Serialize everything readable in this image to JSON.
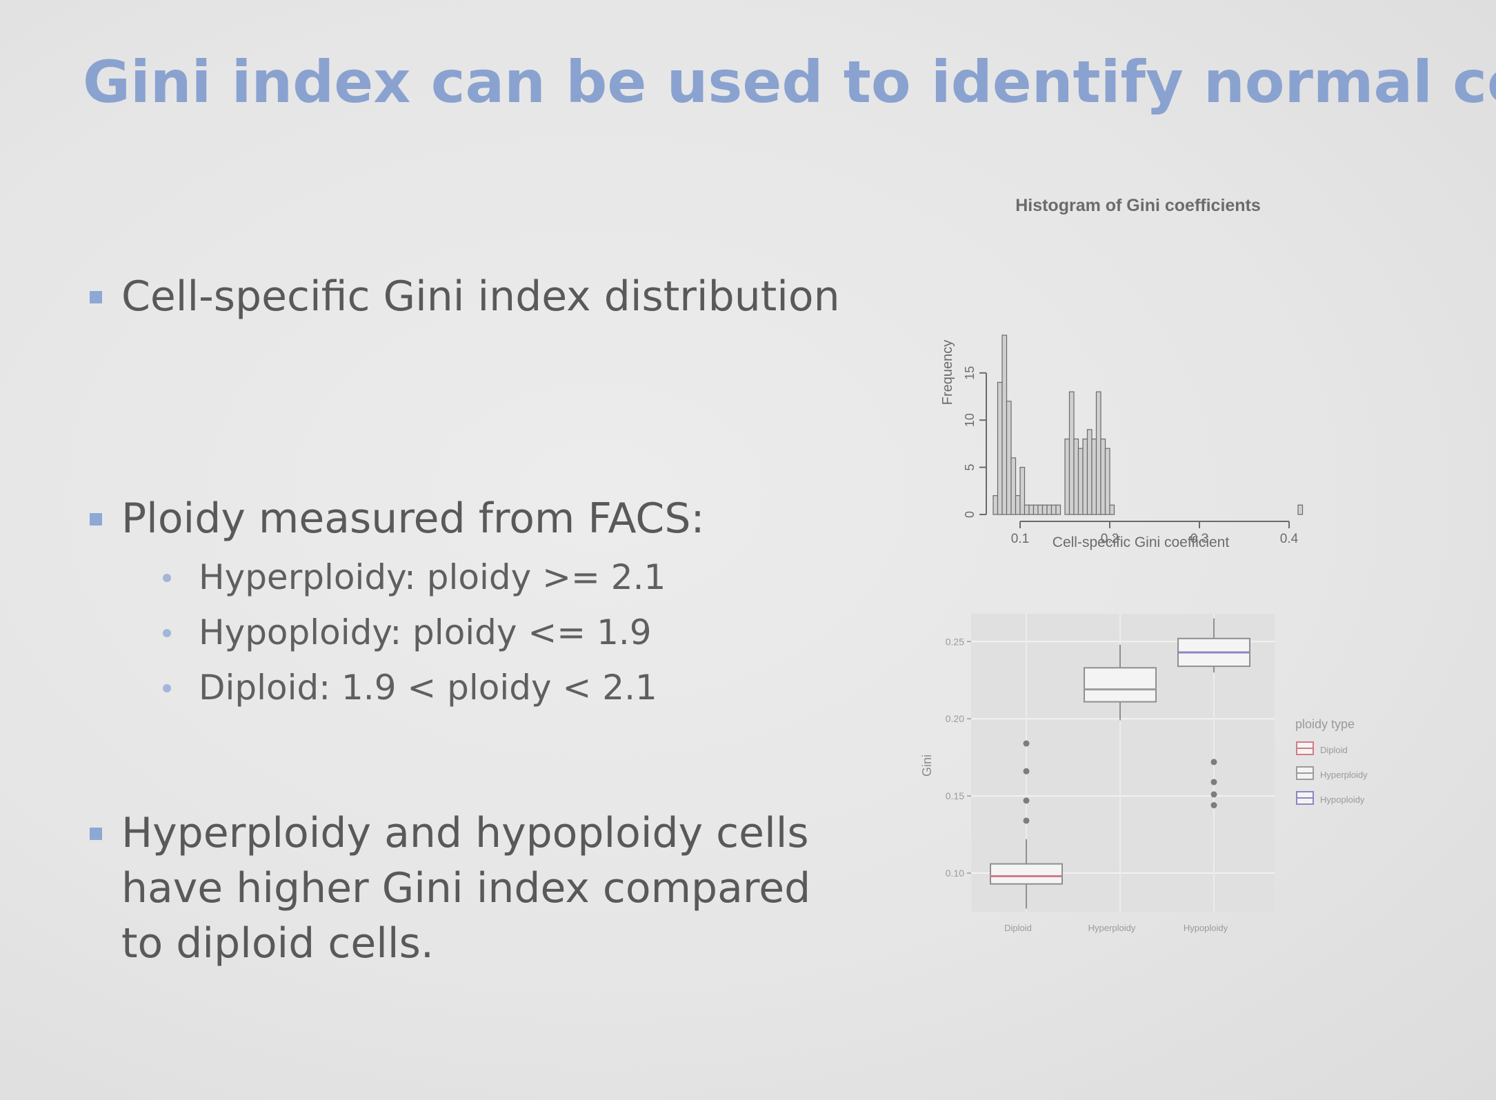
{
  "slide": {
    "title": "Gini index can be used to identify normal cells",
    "bullets": [
      "Cell-specific Gini index distribution",
      "Ploidy measured from FACS:",
      "Hyperploidy and hypoploidy cells have higher Gini index compared to diploid cells."
    ],
    "sub_bullets": [
      "Hyperploidy: ploidy >= 2.1",
      "Hypoploidy: ploidy <= 1.9",
      "Diploid: 1.9 < ploidy < 2.1"
    ],
    "colors": {
      "title": "#8aa2cf",
      "bullet_marker": "#8ea8d4",
      "body_text": "#595959"
    }
  },
  "chart_data": [
    {
      "type": "bar",
      "title": "Histogram of Gini coefficients",
      "xlabel": "Cell-specific Gini coefficient",
      "ylabel": "Frequency",
      "xlim": [
        0.07,
        0.42
      ],
      "ylim": [
        0,
        19
      ],
      "xticks": [
        "0.1",
        "0.2",
        "0.3",
        "0.4"
      ],
      "yticks": [
        "0",
        "5",
        "10",
        "15"
      ],
      "bin_width": 0.005,
      "bin_start": 0.07,
      "values": [
        2,
        14,
        19,
        12,
        6,
        2,
        5,
        1,
        1,
        1,
        1,
        1,
        1,
        1,
        1,
        0,
        8,
        13,
        8,
        7,
        8,
        9,
        8,
        13,
        8,
        7,
        1,
        0,
        0,
        0,
        0,
        0,
        0,
        0,
        0,
        0,
        0,
        0,
        0,
        0,
        0,
        0,
        0,
        0,
        0,
        0,
        0,
        0,
        0,
        0,
        0,
        0,
        0,
        0,
        0,
        0,
        0,
        0,
        0,
        0,
        0,
        0,
        0,
        0,
        0,
        0,
        0,
        0,
        1
      ]
    },
    {
      "type": "box",
      "xlabel": "",
      "ylabel": "Gini",
      "yticks": [
        "0.10",
        "0.15",
        "0.20",
        "0.25"
      ],
      "ylim": [
        0.075,
        0.268
      ],
      "categories": [
        "Diploid",
        "Hyperploidy",
        "Hypoploidy"
      ],
      "legend_title": "ploidy type",
      "legend_position": "right",
      "series": [
        {
          "name": "Diploid",
          "color": "#d17b85",
          "min": 0.077,
          "q1": 0.093,
          "median": 0.098,
          "q3": 0.106,
          "max": 0.122,
          "outliers": [
            0.134,
            0.147,
            0.166,
            0.184
          ]
        },
        {
          "name": "Hyperploidy",
          "color": "#9c9c9c",
          "min": 0.199,
          "q1": 0.211,
          "median": 0.219,
          "q3": 0.233,
          "max": 0.248,
          "outliers": []
        },
        {
          "name": "Hypoploidy",
          "color": "#8a86c4",
          "min": 0.23,
          "q1": 0.234,
          "median": 0.243,
          "q3": 0.252,
          "max": 0.265,
          "outliers": [
            0.144,
            0.151,
            0.159,
            0.172
          ]
        }
      ]
    }
  ]
}
